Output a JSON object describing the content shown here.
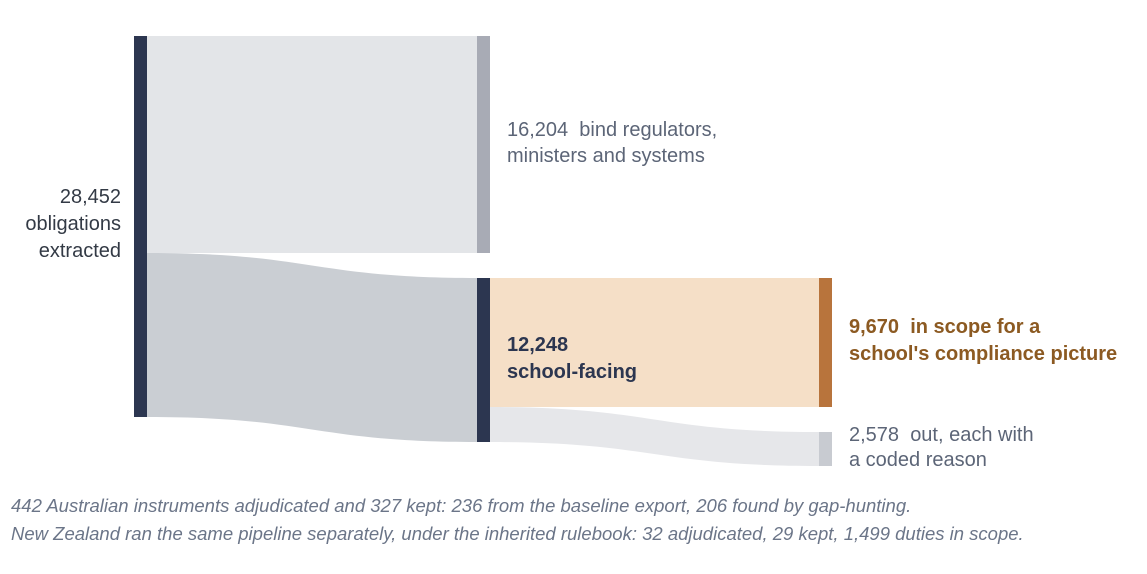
{
  "nodes": {
    "source": {
      "value": "28,452",
      "line1": "obligations",
      "line2": "extracted"
    },
    "regulators": {
      "value": "16,204",
      "line1": "bind regulators,",
      "line2": "ministers and systems"
    },
    "school": {
      "value": "12,248",
      "line1": "school-facing"
    },
    "scope": {
      "value": "9,670",
      "line1": "in scope for a",
      "line2": "school's compliance picture"
    },
    "out": {
      "value": "2,578",
      "line1": "out, each with",
      "line2": "a coded reason"
    }
  },
  "flows": [
    {
      "from": "source",
      "to": "regulators",
      "value": 16204
    },
    {
      "from": "source",
      "to": "school",
      "value": 12248
    },
    {
      "from": "school",
      "to": "scope",
      "value": 9670
    },
    {
      "from": "school",
      "to": "out",
      "value": 2578
    }
  ],
  "colors": {
    "node_dark": "#2c3650",
    "node_grey": "#a8abb5",
    "node_orange": "#b8743c",
    "node_light": "#c8cbd1",
    "flow_regulators": "#e3e5e8",
    "flow_school": "#caced3",
    "flow_scope": "#f5dfc7",
    "flow_out": "#e6e7ea"
  },
  "footnotes": [
    "442 Australian instruments adjudicated and 327 kept: 236 from the baseline export, 206 found by gap-hunting.",
    "New Zealand ran the same pipeline separately, under the inherited rulebook: 32 adjudicated, 29 kept, 1,499 duties in scope."
  ]
}
